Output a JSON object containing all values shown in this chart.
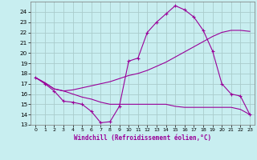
{
  "background_color": "#c8eef0",
  "grid_color": "#aacccc",
  "line_color": "#990099",
  "xlim": [
    -0.5,
    23.5
  ],
  "ylim": [
    13,
    25
  ],
  "yticks": [
    13,
    14,
    15,
    16,
    17,
    18,
    19,
    20,
    21,
    22,
    23,
    24
  ],
  "xticks": [
    0,
    1,
    2,
    3,
    4,
    5,
    6,
    7,
    8,
    9,
    10,
    11,
    12,
    13,
    14,
    15,
    16,
    17,
    18,
    19,
    20,
    21,
    22,
    23
  ],
  "xlabel": "Windchill (Refroidissement éolien,°C)",
  "line1_x": [
    0,
    1,
    2,
    3,
    4,
    5,
    6,
    7,
    8,
    9,
    10,
    11,
    12,
    13,
    14,
    15,
    16,
    17,
    18,
    19,
    20,
    21,
    22,
    23
  ],
  "line1_y": [
    17.6,
    17.0,
    16.3,
    15.3,
    15.2,
    15.0,
    14.3,
    13.2,
    13.3,
    14.8,
    19.2,
    19.5,
    22.0,
    23.0,
    23.8,
    24.6,
    24.2,
    23.5,
    22.2,
    20.2,
    17.0,
    16.0,
    15.8,
    14.0
  ],
  "line2_x": [
    0,
    1,
    2,
    3,
    4,
    5,
    6,
    7,
    8,
    9,
    10,
    11,
    12,
    13,
    14,
    15,
    16,
    17,
    18,
    19,
    20,
    21,
    22,
    23
  ],
  "line2_y": [
    17.6,
    17.1,
    16.5,
    16.3,
    16.4,
    16.6,
    16.8,
    17.0,
    17.2,
    17.5,
    17.8,
    18.0,
    18.3,
    18.7,
    19.1,
    19.6,
    20.1,
    20.6,
    21.1,
    21.6,
    22.0,
    22.2,
    22.2,
    22.1
  ],
  "line3_x": [
    0,
    1,
    2,
    3,
    4,
    5,
    6,
    7,
    8,
    9,
    10,
    11,
    12,
    13,
    14,
    15,
    16,
    17,
    18,
    19,
    20,
    21,
    22,
    23
  ],
  "line3_y": [
    17.6,
    17.1,
    16.5,
    16.3,
    16.0,
    15.7,
    15.5,
    15.2,
    15.0,
    15.0,
    15.0,
    15.0,
    15.0,
    15.0,
    15.0,
    14.8,
    14.7,
    14.7,
    14.7,
    14.7,
    14.7,
    14.7,
    14.5,
    14.0
  ]
}
